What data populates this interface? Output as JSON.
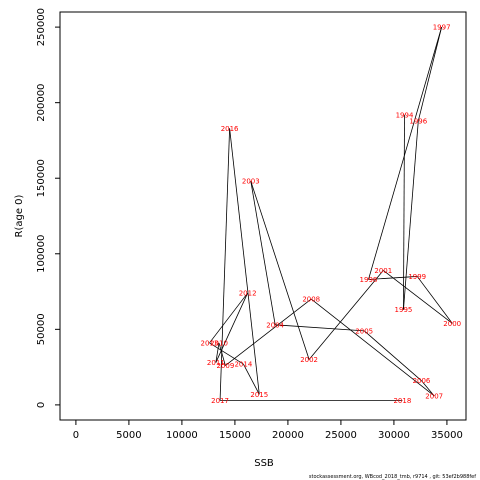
{
  "chart_data": {
    "type": "scatter",
    "title": "",
    "xlabel": "SSB",
    "ylabel": "R(age 0)",
    "xlim": [
      -1500,
      36800
    ],
    "ylim": [
      -10000,
      260000
    ],
    "x_ticks": [
      0,
      5000,
      10000,
      15000,
      20000,
      25000,
      30000,
      35000
    ],
    "y_ticks": [
      0,
      50000,
      100000,
      150000,
      200000,
      250000
    ],
    "grid": false,
    "connected": true,
    "line_color": "#000000",
    "label_color": "#ff0000",
    "points": [
      {
        "year": "1994",
        "x": 31000,
        "y": 192000
      },
      {
        "year": "1995",
        "x": 30900,
        "y": 63000
      },
      {
        "year": "1996",
        "x": 32300,
        "y": 188000
      },
      {
        "year": "1997",
        "x": 34500,
        "y": 250000
      },
      {
        "year": "1998",
        "x": 27600,
        "y": 83000
      },
      {
        "year": "1999",
        "x": 32200,
        "y": 85000
      },
      {
        "year": "2000",
        "x": 35500,
        "y": 54000
      },
      {
        "year": "2001",
        "x": 29000,
        "y": 89000
      },
      {
        "year": "2002",
        "x": 22000,
        "y": 30000
      },
      {
        "year": "2003",
        "x": 16500,
        "y": 148000
      },
      {
        "year": "2004",
        "x": 18800,
        "y": 53000
      },
      {
        "year": "2005",
        "x": 27200,
        "y": 49000
      },
      {
        "year": "2006",
        "x": 32600,
        "y": 16000
      },
      {
        "year": "2007",
        "x": 33800,
        "y": 6000
      },
      {
        "year": "2008",
        "x": 22200,
        "y": 70000
      },
      {
        "year": "2009",
        "x": 14100,
        "y": 26000
      },
      {
        "year": "2010",
        "x": 13500,
        "y": 41000
      },
      {
        "year": "2011",
        "x": 13200,
        "y": 28000
      },
      {
        "year": "2012",
        "x": 16200,
        "y": 74000
      },
      {
        "year": "2013",
        "x": 12600,
        "y": 41000
      },
      {
        "year": "2014",
        "x": 15800,
        "y": 27000
      },
      {
        "year": "2015",
        "x": 17300,
        "y": 7000
      },
      {
        "year": "2016",
        "x": 14500,
        "y": 183000
      },
      {
        "year": "2017",
        "x": 13600,
        "y": 3000
      },
      {
        "year": "2018",
        "x": 30800,
        "y": 3000
      }
    ]
  },
  "footer": "stockassessment.org, WBcod_2018_tmb, r9714 , git: 53ef2b988fef"
}
